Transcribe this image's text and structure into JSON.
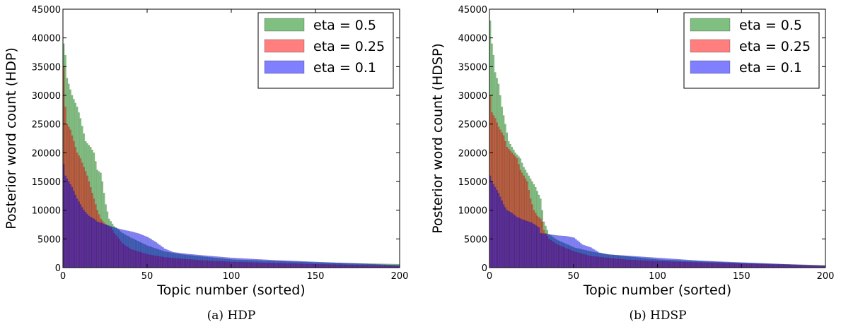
{
  "chart_data": [
    {
      "type": "bar",
      "xlabel": "Topic number (sorted)",
      "ylabel": "Posterior word count (HDP)",
      "caption": "(a)  HDP",
      "xlim": [
        0,
        200
      ],
      "ylim": [
        0,
        45000
      ],
      "xticks": [
        0,
        50,
        100,
        150,
        200
      ],
      "yticks": [
        0,
        5000,
        10000,
        15000,
        20000,
        25000,
        30000,
        35000,
        40000,
        45000
      ],
      "legend_position": "top-right",
      "series": [
        {
          "name": "eta = 0.5",
          "color": "#008000",
          "keypoints": [
            [
              0,
              39000
            ],
            [
              1,
              37000
            ],
            [
              2,
              33000
            ],
            [
              3,
              32000
            ],
            [
              5,
              30000
            ],
            [
              8,
              28000
            ],
            [
              10,
              26000
            ],
            [
              13,
              22000
            ],
            [
              16,
              21000
            ],
            [
              18,
              20000
            ],
            [
              19,
              18500
            ],
            [
              20,
              17000
            ],
            [
              22,
              16500
            ],
            [
              23,
              15000
            ],
            [
              25,
              11000
            ],
            [
              27,
              8500
            ],
            [
              30,
              7200
            ],
            [
              35,
              6000
            ],
            [
              40,
              5200
            ],
            [
              50,
              3800
            ],
            [
              60,
              2800
            ],
            [
              70,
              2300
            ],
            [
              100,
              1400
            ],
            [
              150,
              900
            ],
            [
              200,
              600
            ]
          ]
        },
        {
          "name": "eta = 0.25",
          "color": "#ff0000",
          "keypoints": [
            [
              0,
              35000
            ],
            [
              1,
              28000
            ],
            [
              2,
              25000
            ],
            [
              4,
              24000
            ],
            [
              6,
              22000
            ],
            [
              8,
              20000
            ],
            [
              10,
              19000
            ],
            [
              12,
              17500
            ],
            [
              14,
              16000
            ],
            [
              15,
              15000
            ],
            [
              17,
              13000
            ],
            [
              18,
              12000
            ],
            [
              20,
              10000
            ],
            [
              22,
              8500
            ],
            [
              25,
              7500
            ],
            [
              28,
              7000
            ],
            [
              30,
              6000
            ],
            [
              33,
              5000
            ],
            [
              35,
              4200
            ],
            [
              40,
              3200
            ],
            [
              50,
              2300
            ],
            [
              60,
              1800
            ],
            [
              80,
              1300
            ],
            [
              100,
              1000
            ],
            [
              150,
              600
            ],
            [
              200,
              300
            ]
          ]
        },
        {
          "name": "eta = 0.1",
          "color": "#0000ff",
          "keypoints": [
            [
              0,
              18000
            ],
            [
              1,
              16000
            ],
            [
              3,
              15000
            ],
            [
              5,
              14000
            ],
            [
              8,
              12000
            ],
            [
              10,
              11000
            ],
            [
              12,
              10000
            ],
            [
              15,
              9000
            ],
            [
              18,
              8500
            ],
            [
              20,
              8000
            ],
            [
              25,
              7500
            ],
            [
              30,
              7000
            ],
            [
              35,
              6600
            ],
            [
              40,
              6300
            ],
            [
              45,
              5900
            ],
            [
              50,
              5300
            ],
            [
              55,
              4400
            ],
            [
              60,
              3300
            ],
            [
              65,
              2700
            ],
            [
              70,
              2500
            ],
            [
              80,
              2200
            ],
            [
              100,
              1700
            ],
            [
              125,
              1300
            ],
            [
              150,
              1000
            ],
            [
              175,
              700
            ],
            [
              200,
              400
            ]
          ]
        }
      ]
    },
    {
      "type": "bar",
      "xlabel": "Topic number (sorted)",
      "ylabel": "Posterior word count (HDSP)",
      "caption": "(b)  HDSP",
      "xlim": [
        0,
        200
      ],
      "ylim": [
        0,
        45000
      ],
      "xticks": [
        0,
        50,
        100,
        150,
        200
      ],
      "yticks": [
        0,
        5000,
        10000,
        15000,
        20000,
        25000,
        30000,
        35000,
        40000,
        45000
      ],
      "legend_position": "top-right",
      "series": [
        {
          "name": "eta = 0.5",
          "color": "#008000",
          "keypoints": [
            [
              0,
              43000
            ],
            [
              1,
              39000
            ],
            [
              2,
              37000
            ],
            [
              3,
              34000
            ],
            [
              5,
              32000
            ],
            [
              7,
              28000
            ],
            [
              9,
              25000
            ],
            [
              11,
              22000
            ],
            [
              13,
              21000
            ],
            [
              15,
              20000
            ],
            [
              18,
              19000
            ],
            [
              20,
              17500
            ],
            [
              22,
              16500
            ],
            [
              24,
              15500
            ],
            [
              27,
              14000
            ],
            [
              30,
              12000
            ],
            [
              32,
              8000
            ],
            [
              35,
              5800
            ],
            [
              40,
              4800
            ],
            [
              50,
              3500
            ],
            [
              60,
              2800
            ],
            [
              70,
              2300
            ],
            [
              100,
              1400
            ],
            [
              150,
              800
            ],
            [
              200,
              400
            ]
          ]
        },
        {
          "name": "eta = 0.25",
          "color": "#ff0000",
          "keypoints": [
            [
              0,
              30000
            ],
            [
              1,
              27000
            ],
            [
              3,
              26000
            ],
            [
              5,
              24500
            ],
            [
              8,
              23000
            ],
            [
              10,
              21000
            ],
            [
              13,
              20000
            ],
            [
              16,
              19000
            ],
            [
              18,
              17000
            ],
            [
              20,
              16000
            ],
            [
              22,
              15000
            ],
            [
              24,
              12000
            ],
            [
              26,
              10000
            ],
            [
              28,
              9000
            ],
            [
              30,
              8500
            ],
            [
              31,
              8000
            ],
            [
              32,
              6500
            ],
            [
              35,
              5000
            ],
            [
              40,
              4000
            ],
            [
              50,
              2800
            ],
            [
              60,
              2000
            ],
            [
              80,
              1400
            ],
            [
              100,
              1100
            ],
            [
              150,
              700
            ],
            [
              200,
              300
            ]
          ]
        },
        {
          "name": "eta = 0.1",
          "color": "#0000ff",
          "keypoints": [
            [
              0,
              16000
            ],
            [
              1,
              15000
            ],
            [
              3,
              14000
            ],
            [
              5,
              13000
            ],
            [
              8,
              11000
            ],
            [
              10,
              10000
            ],
            [
              13,
              9500
            ],
            [
              16,
              8800
            ],
            [
              20,
              8300
            ],
            [
              25,
              7800
            ],
            [
              29,
              7000
            ],
            [
              30,
              6000
            ],
            [
              35,
              5800
            ],
            [
              40,
              5600
            ],
            [
              45,
              5500
            ],
            [
              50,
              5200
            ],
            [
              55,
              4000
            ],
            [
              60,
              3500
            ],
            [
              65,
              2600
            ],
            [
              70,
              2300
            ],
            [
              80,
              2100
            ],
            [
              100,
              1700
            ],
            [
              125,
              1200
            ],
            [
              150,
              900
            ],
            [
              175,
              600
            ],
            [
              200,
              300
            ]
          ]
        }
      ]
    }
  ]
}
